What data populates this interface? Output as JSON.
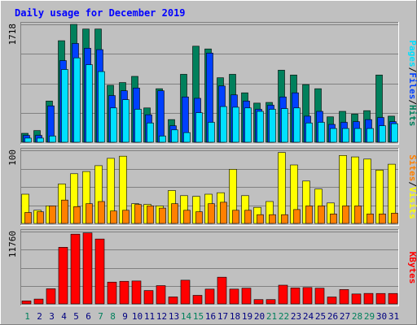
{
  "title": "Daily usage for December 2019",
  "colors": {
    "title": "#0000ff",
    "hits": "#00805c",
    "files": "#0040ff",
    "pages": "#00e0ff",
    "visits": "#ffff00",
    "sites": "#ff8000",
    "kbytes": "#ff0000",
    "weekend": "#00805c",
    "weekday": "#000080"
  },
  "right_labels": {
    "top": [
      "Pages",
      "Files",
      "Hits"
    ],
    "mid": [
      "Sites",
      "Visits"
    ],
    "bottom": [
      "KBytes"
    ]
  },
  "chart_data": [
    {
      "type": "bar",
      "title": "Daily usage for December 2019",
      "panel": "hits-files-pages",
      "ymax_label": "1718",
      "ylim": [
        0,
        1718
      ],
      "categories": [
        "1",
        "2",
        "3",
        "4",
        "5",
        "6",
        "7",
        "8",
        "9",
        "10",
        "11",
        "12",
        "13",
        "14",
        "15",
        "16",
        "17",
        "18",
        "19",
        "20",
        "21",
        "22",
        "23",
        "24",
        "25",
        "26",
        "27",
        "28",
        "29",
        "30",
        "31"
      ],
      "weekend_days": [
        "1",
        "7",
        "8",
        "14",
        "15",
        "21",
        "22",
        "28",
        "29"
      ],
      "series": [
        {
          "name": "Hits",
          "values": [
            130,
            170,
            600,
            1480,
            1718,
            1650,
            1650,
            830,
            870,
            960,
            500,
            780,
            330,
            990,
            1400,
            1360,
            940,
            990,
            720,
            570,
            580,
            1050,
            980,
            840,
            780,
            370,
            450,
            410,
            460,
            980,
            380
          ]
        },
        {
          "name": "Files",
          "values": [
            100,
            100,
            530,
            1190,
            1440,
            1370,
            1350,
            680,
            750,
            790,
            400,
            750,
            240,
            660,
            640,
            1300,
            820,
            690,
            600,
            480,
            540,
            660,
            720,
            380,
            450,
            260,
            290,
            300,
            330,
            360,
            300
          ]
        },
        {
          "name": "Pages",
          "values": [
            60,
            60,
            90,
            1060,
            1230,
            1130,
            1030,
            500,
            620,
            480,
            280,
            90,
            180,
            140,
            430,
            290,
            520,
            510,
            500,
            450,
            480,
            490,
            500,
            280,
            290,
            200,
            200,
            200,
            200,
            240,
            270
          ]
        }
      ]
    },
    {
      "type": "bar",
      "panel": "visits-sites",
      "ymax_label": "100",
      "ylim": [
        0,
        100
      ],
      "categories": [
        "1",
        "2",
        "3",
        "4",
        "5",
        "6",
        "7",
        "8",
        "9",
        "10",
        "11",
        "12",
        "13",
        "14",
        "15",
        "16",
        "17",
        "18",
        "19",
        "20",
        "21",
        "22",
        "23",
        "24",
        "25",
        "26",
        "27",
        "28",
        "29",
        "30",
        "31"
      ],
      "series": [
        {
          "name": "Visits",
          "values": [
            40,
            18,
            24,
            54,
            68,
            71,
            79,
            89,
            92,
            27,
            26,
            24,
            45,
            38,
            37,
            40,
            42,
            74,
            38,
            22,
            30,
            97,
            80,
            58,
            47,
            28,
            93,
            91,
            88,
            73,
            81
          ]
        },
        {
          "name": "Sites",
          "values": [
            15,
            16,
            24,
            32,
            23,
            27,
            30,
            17,
            18,
            26,
            24,
            21,
            27,
            18,
            16,
            27,
            29,
            18,
            18,
            12,
            12,
            12,
            19,
            24,
            24,
            13,
            24,
            24,
            13,
            13,
            14
          ]
        }
      ]
    },
    {
      "type": "bar",
      "panel": "kbytes",
      "ymax_label": "11760",
      "ylim": [
        0,
        11760
      ],
      "categories": [
        "1",
        "2",
        "3",
        "4",
        "5",
        "6",
        "7",
        "8",
        "9",
        "10",
        "11",
        "12",
        "13",
        "14",
        "15",
        "16",
        "17",
        "18",
        "19",
        "20",
        "21",
        "22",
        "23",
        "24",
        "25",
        "26",
        "27",
        "28",
        "29",
        "30",
        "31"
      ],
      "series": [
        {
          "name": "KBytes",
          "values": [
            480,
            780,
            2460,
            9200,
            11340,
            11540,
            10550,
            3540,
            3670,
            3720,
            2170,
            2970,
            1130,
            3850,
            1390,
            2400,
            4340,
            2400,
            2550,
            700,
            700,
            3040,
            2590,
            2660,
            2550,
            1120,
            2330,
            1610,
            1700,
            1690,
            1690
          ]
        }
      ]
    }
  ]
}
